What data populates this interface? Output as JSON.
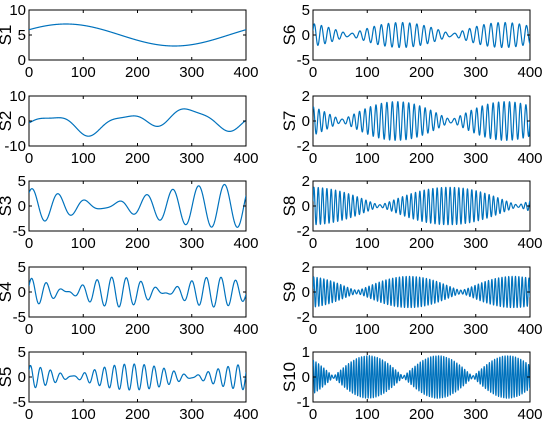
{
  "colors": {
    "line": "#0072BD",
    "axes": "#000000",
    "background": "#ffffff"
  },
  "chart_data": [
    {
      "type": "line",
      "ylabel": "S1",
      "xlim": [
        0,
        400
      ],
      "ylim": [
        0,
        10
      ],
      "xticks": [
        "0",
        "100",
        "200",
        "300",
        "400"
      ],
      "yticks": [
        "0",
        "5",
        "10"
      ],
      "signal": {
        "offset": 5,
        "components": [
          {
            "a": 2.2,
            "p": 400,
            "ph": 0.5
          }
        ]
      }
    },
    {
      "type": "line",
      "ylabel": "S2",
      "xlim": [
        0,
        400
      ],
      "ylim": [
        -10,
        10
      ],
      "xticks": [
        "0",
        "100",
        "200",
        "300",
        "400"
      ],
      "yticks": [
        "-10",
        "0",
        "10"
      ],
      "signal": {
        "offset": 0,
        "components": [
          {
            "a": 3.0,
            "p": 125,
            "ph": 5.4
          },
          {
            "a": 2.2,
            "p": 333,
            "ph": 2.7
          },
          {
            "a": 0.9,
            "p": 66,
            "ph": 0.7
          }
        ]
      }
    },
    {
      "type": "line",
      "ylabel": "S3",
      "xlim": [
        0,
        400
      ],
      "ylim": [
        -5,
        5
      ],
      "xticks": [
        "0",
        "100",
        "200",
        "300",
        "400"
      ],
      "yticks": [
        "-5",
        "0",
        "5"
      ],
      "signal": {
        "offset": 0,
        "components": [
          {
            "a": 2.4,
            "p": 50,
            "ph": 0.3
          },
          {
            "a": 1.9,
            "p": 45,
            "ph": 1.5
          }
        ]
      }
    },
    {
      "type": "line",
      "ylabel": "S4",
      "xlim": [
        0,
        400
      ],
      "ylim": [
        -5,
        5
      ],
      "xticks": [
        "0",
        "100",
        "200",
        "300",
        "400"
      ],
      "yticks": [
        "-5",
        "0",
        "5"
      ],
      "signal": {
        "offset": 0,
        "components": [
          {
            "a": 1.6,
            "p": 29,
            "ph": 0.1
          },
          {
            "a": 1.4,
            "p": 25,
            "ph": 0.8
          }
        ]
      }
    },
    {
      "type": "line",
      "ylabel": "S5",
      "xlim": [
        0,
        400
      ],
      "ylim": [
        -5,
        5
      ],
      "xticks": [
        "0",
        "100",
        "200",
        "300",
        "400"
      ],
      "yticks": [
        "-5",
        "0",
        "5"
      ],
      "signal": {
        "offset": 0,
        "components": [
          {
            "a": 1.4,
            "p": 19,
            "ph": 0.2
          },
          {
            "a": 1.2,
            "p": 17.5,
            "ph": 1.1
          }
        ]
      }
    },
    {
      "type": "line",
      "ylabel": "S6",
      "xlim": [
        0,
        400
      ],
      "ylim": [
        -5,
        5
      ],
      "xticks": [
        "0",
        "100",
        "200",
        "300",
        "400"
      ],
      "yticks": [
        "-5",
        "0",
        "5"
      ],
      "signal": {
        "offset": 0,
        "components": [
          {
            "a": 1.4,
            "p": 13.5,
            "ph": 0.0
          },
          {
            "a": 1.1,
            "p": 12.6,
            "ph": 0.9
          }
        ]
      }
    },
    {
      "type": "line",
      "ylabel": "S7",
      "xlim": [
        0,
        400
      ],
      "ylim": [
        -2,
        2
      ],
      "xticks": [
        "0",
        "100",
        "200",
        "300",
        "400"
      ],
      "yticks": [
        "-2",
        "0",
        "2"
      ],
      "signal": {
        "offset": 0,
        "components": [
          {
            "a": 0.85,
            "p": 10.3,
            "ph": 0.4
          },
          {
            "a": 0.7,
            "p": 9.8,
            "ph": 1.9
          }
        ]
      }
    },
    {
      "type": "line",
      "ylabel": "S8",
      "xlim": [
        0,
        400
      ],
      "ylim": [
        -2,
        2
      ],
      "xticks": [
        "0",
        "100",
        "200",
        "300",
        "400"
      ],
      "yticks": [
        "-2",
        "0",
        "2"
      ],
      "signal": {
        "offset": 0,
        "components": [
          {
            "a": 0.8,
            "p": 8.1,
            "ph": 0.2
          },
          {
            "a": 0.7,
            "p": 7.85,
            "ph": 0.3
          }
        ]
      }
    },
    {
      "type": "line",
      "ylabel": "S9",
      "xlim": [
        0,
        400
      ],
      "ylim": [
        -2,
        2
      ],
      "xticks": [
        "0",
        "100",
        "200",
        "300",
        "400"
      ],
      "yticks": [
        "-2",
        "0",
        "2"
      ],
      "signal": {
        "offset": 0,
        "components": [
          {
            "a": 0.7,
            "p": 6.3,
            "ph": 0.0
          },
          {
            "a": 0.55,
            "p": 6.1,
            "ph": 0.5
          }
        ]
      }
    },
    {
      "type": "line",
      "ylabel": "S10",
      "xlim": [
        0,
        400
      ],
      "ylim": [
        -1,
        1
      ],
      "xticks": [
        "0",
        "100",
        "200",
        "300",
        "400"
      ],
      "yticks": [
        "-1",
        "0",
        "1"
      ],
      "signal": {
        "offset": 0,
        "components": [
          {
            "a": 0.45,
            "p": 4.9,
            "ph": 0.1
          },
          {
            "a": 0.4,
            "p": 4.72,
            "ph": 1.4
          }
        ]
      }
    }
  ]
}
